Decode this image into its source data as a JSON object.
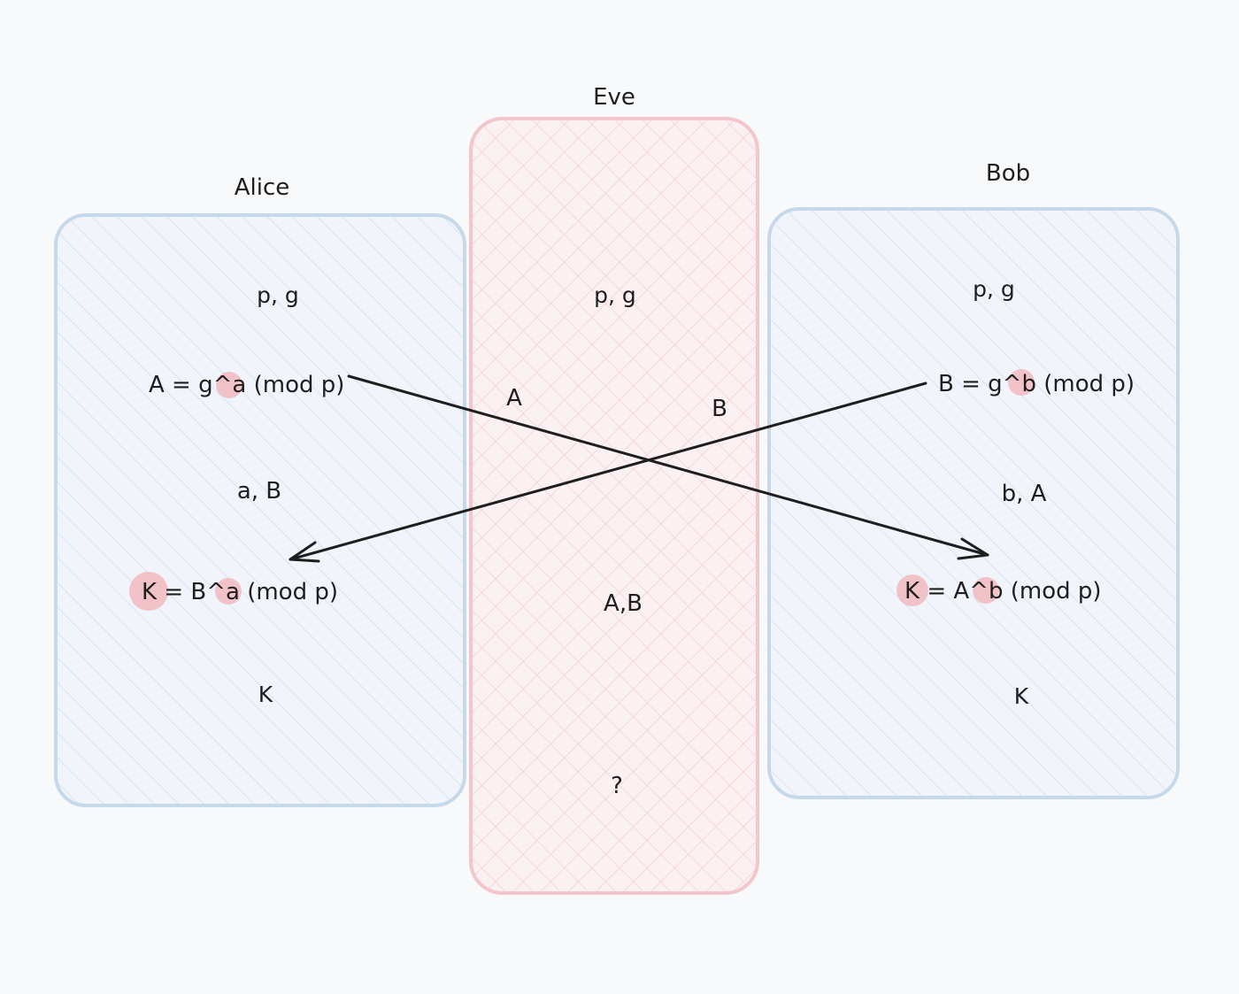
{
  "colors": {
    "party_border": "#c6d9ea",
    "party_hatch": "#d5e4f3",
    "party_fill": "#f1f5fb",
    "eve_border": "#f2c6cb",
    "eve_hatch": "#f4cfd3",
    "eve_fill": "#fbf1f3",
    "highlight": "#f2b8c0",
    "ink": "#1e1e1e"
  },
  "alice": {
    "title": "Alice",
    "public_params": "p, g",
    "public_key": {
      "prefix": "A = g^",
      "secret": "a",
      "suffix": " (mod p)"
    },
    "known": "a, B",
    "shared": {
      "key": "K",
      "mid": " = B^",
      "secret": "a",
      "suffix": " (mod p)"
    },
    "result": "K"
  },
  "eve": {
    "title": "Eve",
    "public_params": "p, g",
    "intercepted_a": "A",
    "intercepted_b": "B",
    "known": "A,B",
    "result": "?"
  },
  "bob": {
    "title": "Bob",
    "public_params": "p, g",
    "public_key": {
      "prefix": "B = g^",
      "secret": "b",
      "suffix": " (mod p)"
    },
    "known": "b, A",
    "shared": {
      "key": "K",
      "mid": " = A^",
      "secret": "b",
      "suffix": " (mod p)"
    },
    "result": "K"
  }
}
